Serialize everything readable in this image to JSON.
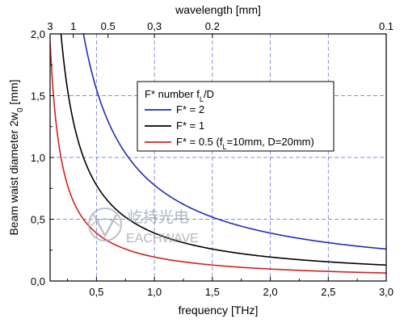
{
  "chart_data": {
    "type": "line",
    "xlabel": "frequency [THz]",
    "x2label": "wavelength [mm]",
    "xlim": [
      0.1,
      3.0
    ],
    "ylim": [
      0.0,
      2.0
    ],
    "xticks": [
      {
        "v": 0.5,
        "label": "0,5"
      },
      {
        "v": 1.0,
        "label": "1,0"
      },
      {
        "v": 1.5,
        "label": "1,5"
      },
      {
        "v": 2.0,
        "label": "2,0"
      },
      {
        "v": 2.5,
        "label": "2,5"
      },
      {
        "v": 3.0,
        "label": "3,0"
      }
    ],
    "yticks": [
      {
        "v": 0.0,
        "label": "0,0"
      },
      {
        "v": 0.5,
        "label": "0,5"
      },
      {
        "v": 1.0,
        "label": "1,0"
      },
      {
        "v": 1.5,
        "label": "1,5"
      },
      {
        "v": 2.0,
        "label": "2,0"
      }
    ],
    "top_ticks": [
      {
        "wavelength": 3,
        "label": "3"
      },
      {
        "wavelength": 1,
        "label": "1"
      },
      {
        "wavelength": 0.5,
        "label": "0.5"
      },
      {
        "wavelength": 0.3,
        "label": "0,3"
      },
      {
        "wavelength": 0.2,
        "label": "0.2"
      },
      {
        "wavelength": 0.1,
        "label": "0.1"
      }
    ],
    "grid": true,
    "legend_title": "F* number f_L/D",
    "legend_position": "top-right",
    "series": [
      {
        "name": "F* = 2",
        "color": "#1f2fb4",
        "k": 0.776
      },
      {
        "name": "F* = 1",
        "color": "#000000",
        "k": 0.388
      },
      {
        "name": "F* = 0.5 (f_L=10mm, D=20mm)",
        "color": "#d42020",
        "k": 0.194
      }
    ]
  },
  "watermark": {
    "cn": "屹持光电",
    "en": "EACHWAVE"
  }
}
